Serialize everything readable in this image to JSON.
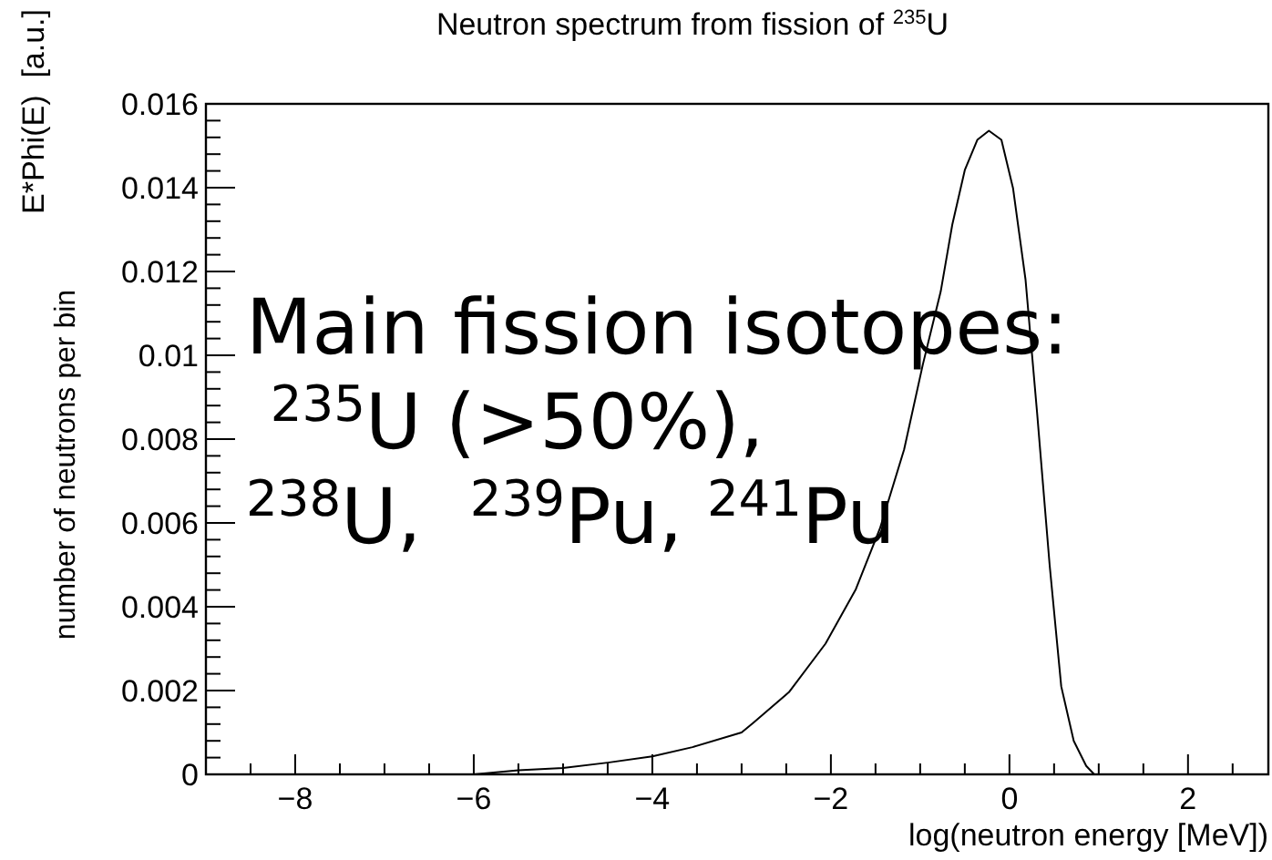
{
  "chart_data": {
    "type": "line",
    "title": "Neutron spectrum from fission of $^{235}$U",
    "xlabel": "log(neutron energy [MeV])",
    "ylabel": "E*Phi(E)  [a.u.]",
    "annotations": [
      "number of neutrons per bin",
      "Main fission isotopes:\n $^{235}$U (>50%),\n$^{238}$U,  $^{239}$Pu, $^{241}$Pu"
    ],
    "xlim": [
      -9,
      2.9
    ],
    "ylim": [
      0,
      0.016
    ],
    "xticks": [
      {
        "value": -8.5,
        "label": null
      },
      -8,
      {
        "value": -7.5,
        "label": null
      },
      {
        "value": -7,
        "label": null
      },
      {
        "value": -6.5,
        "label": null
      },
      -6,
      {
        "value": -5.5,
        "label": null
      },
      {
        "value": -5,
        "label": null
      },
      {
        "value": -4.5,
        "label": null
      },
      -4,
      {
        "value": -3.5,
        "label": null
      },
      {
        "value": -3,
        "label": null
      },
      {
        "value": -2.5,
        "label": null
      },
      -2,
      {
        "value": -1.5,
        "label": null
      },
      {
        "value": -1,
        "label": null
      },
      {
        "value": -0.5,
        "label": null
      },
      0,
      {
        "value": 0.5,
        "label": null
      },
      {
        "value": 1,
        "label": null
      },
      {
        "value": 1.5,
        "label": null
      },
      2,
      {
        "value": 2.5,
        "label": null
      }
    ],
    "yticks": [
      0,
      {
        "value": 0.0004,
        "label": null
      },
      {
        "value": 0.0008,
        "label": null
      },
      {
        "value": 0.0012,
        "label": null
      },
      {
        "value": 0.0016,
        "label": null
      },
      0.002,
      {
        "value": 0.0024,
        "label": null
      },
      {
        "value": 0.0028,
        "label": null
      },
      {
        "value": 0.0032,
        "label": null
      },
      {
        "value": 0.0036,
        "label": null
      },
      0.004,
      {
        "value": 0.0044,
        "label": null
      },
      {
        "value": 0.0048,
        "label": null
      },
      {
        "value": 0.0052,
        "label": null
      },
      {
        "value": 0.0056,
        "label": null
      },
      0.006,
      {
        "value": 0.0064,
        "label": null
      },
      {
        "value": 0.0068,
        "label": null
      },
      {
        "value": 0.0072,
        "label": null
      },
      {
        "value": 0.0076,
        "label": null
      },
      0.008,
      {
        "value": 0.0084,
        "label": null
      },
      {
        "value": 0.0088,
        "label": null
      },
      {
        "value": 0.0092,
        "label": null
      },
      {
        "value": 0.0096,
        "label": null
      },
      0.01,
      {
        "value": 0.0104,
        "label": null
      },
      {
        "value": 0.0108,
        "label": null
      },
      {
        "value": 0.0112,
        "label": null
      },
      {
        "value": 0.0116,
        "label": null
      },
      0.012,
      {
        "value": 0.0124,
        "label": null
      },
      {
        "value": 0.0128,
        "label": null
      },
      {
        "value": 0.0132,
        "label": null
      },
      {
        "value": 0.0136,
        "label": null
      },
      0.014,
      {
        "value": 0.0144,
        "label": null
      },
      {
        "value": 0.0148,
        "label": null
      },
      {
        "value": 0.0152,
        "label": null
      },
      {
        "value": 0.0156,
        "label": null
      },
      0.016
    ],
    "grid": false,
    "marker": "none",
    "line_style": "solid",
    "series": [
      {
        "color": "#000000",
        "x": [
          -6,
          -5.5,
          -5,
          -4.5,
          -4,
          -3.55,
          -3,
          -2.87,
          -2.47,
          -2.06,
          -1.72,
          -1.45,
          -1.18,
          -0.97,
          -0.77,
          -0.64,
          -0.5,
          -0.36,
          -0.23,
          -0.09,
          0.04,
          0.18,
          0.31,
          0.45,
          0.58,
          0.72,
          0.86,
          0.95
        ],
        "values": [
          0,
          0.0001,
          0.00015,
          0.00028,
          0.00043,
          0.00065,
          0.001,
          0.00123,
          0.00196,
          0.00312,
          0.00442,
          0.00587,
          0.00775,
          0.00978,
          0.01152,
          0.01312,
          0.01442,
          0.01514,
          0.01536,
          0.01514,
          0.01399,
          0.01181,
          0.00862,
          0.005,
          0.0021,
          0.0008,
          0.0002,
          0
        ]
      }
    ]
  }
}
